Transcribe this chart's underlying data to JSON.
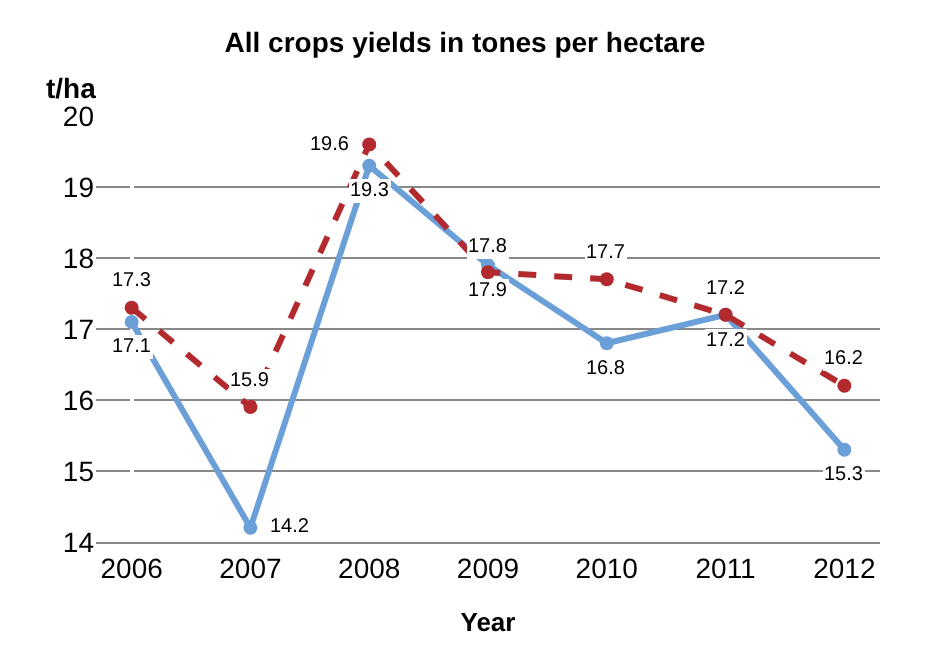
{
  "chart_data": {
    "type": "line",
    "title": "All crops yields in tones per hectare",
    "xlabel": "Year",
    "ylabel": "t/ha",
    "categories": [
      "2006",
      "2007",
      "2008",
      "2009",
      "2010",
      "2011",
      "2012"
    ],
    "series": [
      {
        "color": "#6a9fd8",
        "values": [
          17.1,
          14.2,
          19.3,
          17.9,
          16.8,
          17.2,
          15.3
        ],
        "line_style": "solid"
      },
      {
        "color": "#b22a2e",
        "values": [
          17.3,
          15.9,
          19.6,
          17.8,
          17.7,
          17.2,
          16.2
        ],
        "line_style": "dashed"
      }
    ],
    "ylim": [
      14,
      20
    ],
    "yticks": [
      14,
      15,
      16,
      17,
      18,
      19,
      20
    ],
    "grid": "y",
    "marker": "circle",
    "data_labels": true
  }
}
